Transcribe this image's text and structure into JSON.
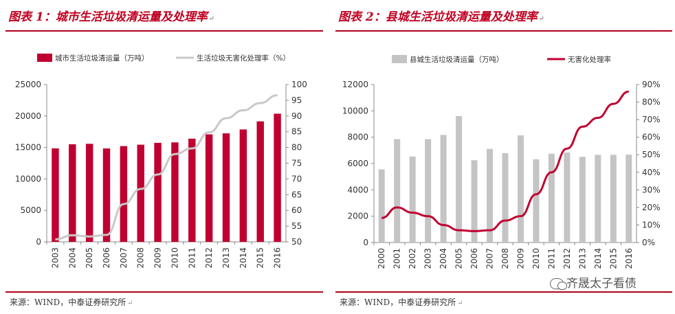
{
  "panels": [
    {
      "title": "图表 1：城市生活垃圾清运量及处理率",
      "source": "来源：WIND，中泰证券研究所",
      "edit_mark": "↵"
    },
    {
      "title": "图表 2：县城生活垃圾清运量及处理率",
      "source": "来源：WIND，中泰证券研究所",
      "edit_mark": "↵"
    }
  ],
  "watermark": "齐晟太子看债",
  "chart_data": [
    {
      "type": "bar",
      "categories": [
        "2003",
        "2004",
        "2005",
        "2006",
        "2007",
        "2008",
        "2009",
        "2010",
        "2011",
        "2012",
        "2013",
        "2014",
        "2015",
        "2016"
      ],
      "series": [
        {
          "name": "城市生活垃圾清运量（万吨）",
          "type": "bar",
          "axis": "left",
          "color": "#c00030",
          "values": [
            14857,
            15509,
            15577,
            14841,
            15215,
            15438,
            15734,
            15805,
            16395,
            17081,
            17239,
            17860,
            19142,
            20362
          ]
        },
        {
          "name": "生活垃圾无害化处理率（%）",
          "type": "line",
          "axis": "right",
          "color": "#c8c8c8",
          "values": [
            50.8,
            52.1,
            51.7,
            52.2,
            62.0,
            66.8,
            71.4,
            77.9,
            79.7,
            84.8,
            89.3,
            91.8,
            94.1,
            96.6
          ]
        }
      ],
      "ylim_left": [
        0,
        25000
      ],
      "yticks_left": [
        0,
        5000,
        10000,
        15000,
        20000,
        25000
      ],
      "ylim_right": [
        50,
        100
      ],
      "yticks_right": [
        50,
        55,
        60,
        65,
        70,
        75,
        80,
        85,
        90,
        95,
        100
      ],
      "legend_position": "top"
    },
    {
      "type": "bar",
      "categories": [
        "2000",
        "2001",
        "2002",
        "2003",
        "2004",
        "2005",
        "2006",
        "2007",
        "2008",
        "2009",
        "2010",
        "2011",
        "2012",
        "2013",
        "2014",
        "2015",
        "2016"
      ],
      "series": [
        {
          "name": "县城生活垃圾清运量（万吨）",
          "type": "bar",
          "axis": "left",
          "color": "#c4c4c4",
          "values": [
            5560,
            7850,
            6530,
            7850,
            8170,
            9600,
            6250,
            7110,
            6790,
            8140,
            6320,
            6740,
            6840,
            6510,
            6660,
            6660,
            6670
          ]
        },
        {
          "name": "无害化处理率",
          "type": "line",
          "axis": "right",
          "color": "#c00030",
          "values": [
            14,
            20,
            17,
            15,
            10,
            7,
            6.5,
            7,
            12.5,
            15,
            27.5,
            40,
            53.5,
            66,
            71,
            79,
            86
          ]
        }
      ],
      "ylim_left": [
        0,
        12000
      ],
      "yticks_left": [
        0,
        2000,
        4000,
        6000,
        8000,
        10000,
        12000
      ],
      "ylim_right": [
        0,
        90
      ],
      "yticks_right": [
        0,
        10,
        20,
        30,
        40,
        50,
        60,
        70,
        80,
        90
      ],
      "right_tick_suffix": "%",
      "legend_position": "top"
    }
  ]
}
